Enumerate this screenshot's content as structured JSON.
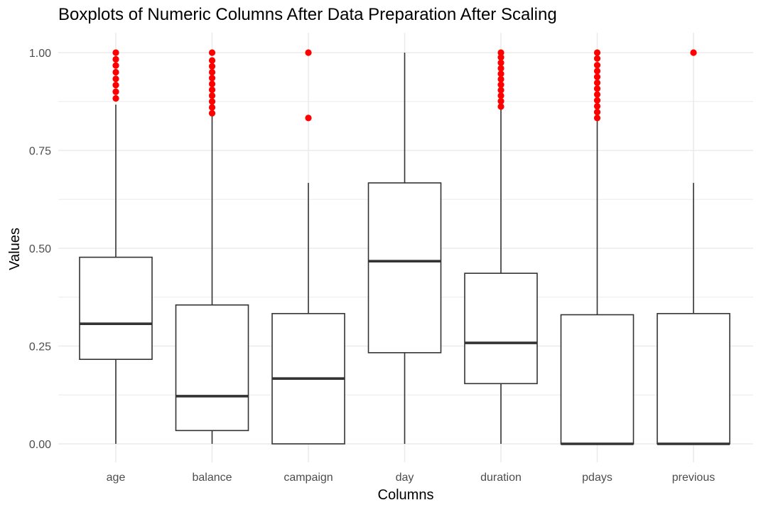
{
  "chart_data": {
    "type": "boxplot",
    "title": "Boxplots of Numeric Columns After Data Preparation After Scaling",
    "xlabel": "Columns",
    "ylabel": "Values",
    "ylim": [
      -0.04,
      1.04
    ],
    "yticks": [
      0.0,
      0.25,
      0.5,
      0.75,
      1.0
    ],
    "ytick_labels": [
      "0.00",
      "0.25",
      "0.50",
      "0.75",
      "1.00"
    ],
    "grid": true,
    "legend": "none",
    "box_color": "#333333",
    "outlier_color": "#ff0000",
    "background": "#ffffff",
    "grid_color": "#ebebeb",
    "categories": [
      "age",
      "balance",
      "campaign",
      "day",
      "duration",
      "pdays",
      "previous"
    ],
    "boxes": [
      {
        "category": "age",
        "whisker_low": 0.0,
        "q1": 0.216,
        "median": 0.307,
        "q3": 0.477,
        "whisker_high": 0.867,
        "outliers": [
          0.883,
          0.9,
          0.917,
          0.933,
          0.95,
          0.967,
          0.983,
          1.0
        ]
      },
      {
        "category": "balance",
        "whisker_low": 0.0,
        "q1": 0.034,
        "median": 0.122,
        "q3": 0.355,
        "whisker_high": 0.84,
        "outliers": [
          0.845,
          0.86,
          0.875,
          0.89,
          0.905,
          0.92,
          0.935,
          0.95,
          0.965,
          0.98,
          1.0
        ]
      },
      {
        "category": "campaign",
        "whisker_low": 0.0,
        "q1": 0.0,
        "median": 0.167,
        "q3": 0.333,
        "whisker_high": 0.667,
        "outliers": [
          0.833,
          1.0
        ]
      },
      {
        "category": "day",
        "whisker_low": 0.0,
        "q1": 0.233,
        "median": 0.467,
        "q3": 0.667,
        "whisker_high": 1.0,
        "outliers": []
      },
      {
        "category": "duration",
        "whisker_low": 0.0,
        "q1": 0.154,
        "median": 0.258,
        "q3": 0.436,
        "whisker_high": 0.858,
        "outliers": [
          0.862,
          0.876,
          0.89,
          0.904,
          0.918,
          0.932,
          0.946,
          0.96,
          0.974,
          0.988,
          1.0
        ]
      },
      {
        "category": "pdays",
        "whisker_low": 0.0,
        "q1": 0.0,
        "median": 0.0,
        "q3": 0.33,
        "whisker_high": 0.828,
        "outliers": [
          0.833,
          0.848,
          0.863,
          0.878,
          0.893,
          0.908,
          0.923,
          0.938,
          0.953,
          0.968,
          0.985,
          1.0
        ]
      },
      {
        "category": "previous",
        "whisker_low": 0.0,
        "q1": 0.0,
        "median": 0.0,
        "q3": 0.333,
        "whisker_high": 0.667,
        "outliers": [
          1.0
        ]
      }
    ]
  }
}
